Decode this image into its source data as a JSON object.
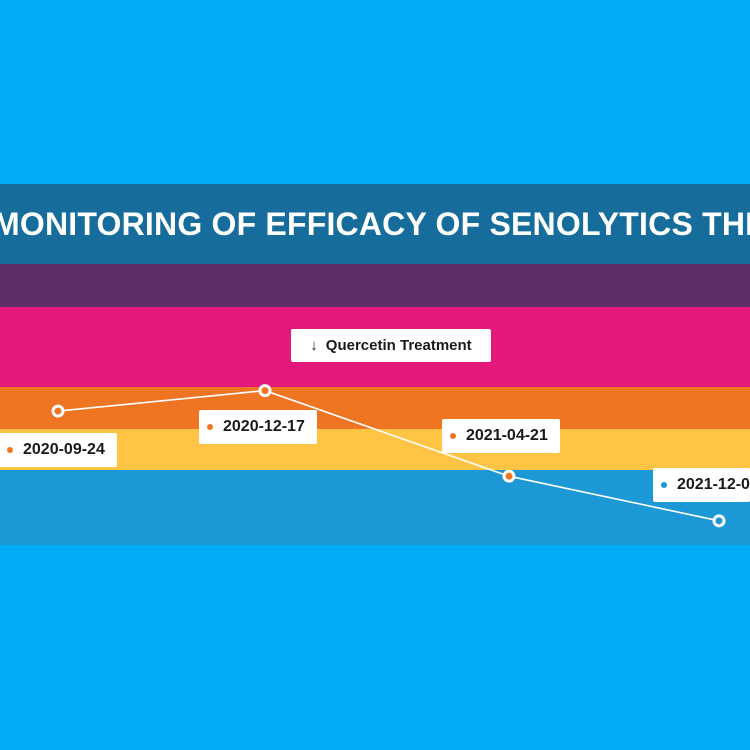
{
  "chart_data": {
    "type": "line",
    "title": "MONITORING OF EFFICACY OF SENOLYTICS THERA",
    "bands": [
      {
        "color": "#5f2e68"
      },
      {
        "color": "#e2197a"
      },
      {
        "color": "#ef7523"
      },
      {
        "color": "#ffc444"
      },
      {
        "color": "#1b98d5"
      }
    ],
    "annotation": {
      "label": "Quercetin Treatment",
      "icon": "arrow-down-icon"
    },
    "points": [
      {
        "label": "2020-09-24",
        "level": 3.6,
        "dot_color": "#ef7523"
      },
      {
        "label": "2020-12-17",
        "level": 4.15,
        "dot_color": "#ef7523"
      },
      {
        "label": "2021-04-21",
        "level": 1.85,
        "dot_color": "#ef7523"
      },
      {
        "label": "2021-12-0",
        "level": 0.65,
        "dot_color": "#1b98d5"
      }
    ],
    "line_color": "#ffffff"
  }
}
